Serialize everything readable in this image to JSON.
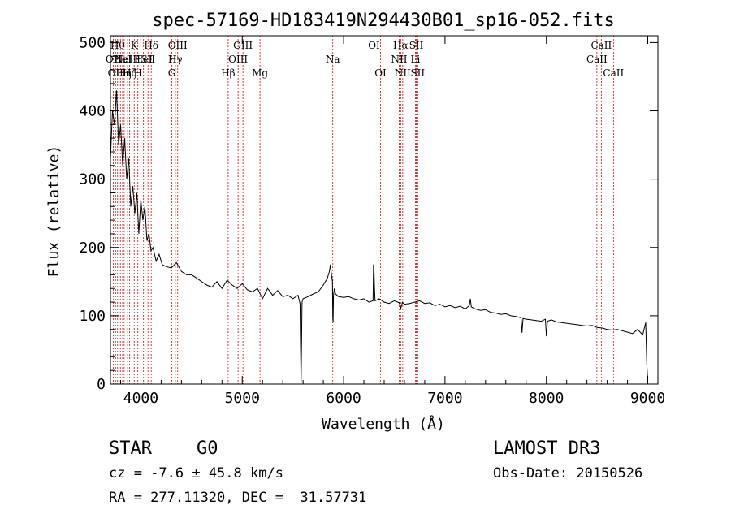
{
  "chart_data": {
    "type": "line",
    "title": "spec-57169-HD183419N294430B01_sp16-052.fits",
    "xlabel": "Wavelength (Å)",
    "ylabel": "Flux (relative)",
    "xlim": [
      3700,
      9100
    ],
    "ylim": [
      0,
      510
    ],
    "xticks": [
      4000,
      5000,
      6000,
      7000,
      8000,
      9000
    ],
    "yticks": [
      0,
      100,
      200,
      300,
      400,
      500
    ],
    "series": [
      {
        "name": "flux",
        "x": [
          3700,
          3720,
          3740,
          3760,
          3780,
          3800,
          3820,
          3840,
          3860,
          3880,
          3900,
          3920,
          3940,
          3960,
          3980,
          4000,
          4020,
          4040,
          4060,
          4080,
          4100,
          4120,
          4150,
          4180,
          4210,
          4250,
          4300,
          4350,
          4400,
          4450,
          4500,
          4550,
          4600,
          4650,
          4700,
          4750,
          4800,
          4850,
          4900,
          4950,
          5000,
          5050,
          5100,
          5150,
          5200,
          5250,
          5300,
          5350,
          5400,
          5450,
          5500,
          5550,
          5570,
          5575,
          5580,
          5590,
          5600,
          5650,
          5700,
          5750,
          5800,
          5820,
          5840,
          5860,
          5870,
          5880,
          5890,
          5893,
          5896,
          5900,
          5910,
          5920,
          5950,
          6000,
          6050,
          6100,
          6150,
          6200,
          6250,
          6290,
          6295,
          6300,
          6305,
          6310,
          6350,
          6400,
          6450,
          6500,
          6550,
          6563,
          6580,
          6600,
          6650,
          6700,
          6750,
          6800,
          6850,
          6900,
          6950,
          7000,
          7050,
          7100,
          7150,
          7200,
          7240,
          7250,
          7260,
          7300,
          7350,
          7400,
          7450,
          7500,
          7550,
          7600,
          7650,
          7700,
          7750,
          7760,
          7770,
          7800,
          7850,
          7900,
          7950,
          7990,
          8000,
          8010,
          8050,
          8100,
          8150,
          8200,
          8250,
          8300,
          8350,
          8400,
          8450,
          8500,
          8550,
          8600,
          8650,
          8700,
          8750,
          8800,
          8850,
          8900,
          8950,
          8980,
          8990,
          9000
        ],
        "values": [
          330,
          400,
          380,
          430,
          350,
          380,
          320,
          360,
          300,
          330,
          260,
          290,
          250,
          280,
          220,
          270,
          240,
          260,
          210,
          220,
          195,
          200,
          180,
          190,
          175,
          172,
          170,
          178,
          165,
          160,
          160,
          155,
          150,
          145,
          142,
          150,
          140,
          152,
          145,
          140,
          147,
          138,
          135,
          140,
          125,
          140,
          130,
          137,
          128,
          130,
          125,
          130,
          118,
          60,
          2,
          120,
          125,
          128,
          132,
          135,
          145,
          150,
          155,
          165,
          175,
          160,
          150,
          100,
          90,
          130,
          140,
          132,
          128,
          127,
          128,
          125,
          123,
          125,
          120,
          122,
          175,
          168,
          140,
          122,
          125,
          120,
          118,
          122,
          119,
          110,
          120,
          117,
          118,
          120,
          122,
          118,
          119,
          115,
          117,
          113,
          115,
          112,
          114,
          110,
          115,
          125,
          113,
          110,
          108,
          109,
          105,
          104,
          102,
          103,
          100,
          99,
          97,
          75,
          96,
          95,
          94,
          93,
          92,
          95,
          70,
          92,
          94,
          91,
          90,
          89,
          88,
          87,
          86,
          85,
          86,
          83,
          82,
          80,
          79,
          80,
          78,
          76,
          74,
          80,
          72,
          90,
          30,
          5
        ]
      }
    ],
    "lines": [
      {
        "wl": 3728,
        "label": "OII",
        "row": 2
      },
      {
        "wl": 3750,
        "label": "OII",
        "row": 3
      },
      {
        "wl": 3770,
        "label": "Hθ",
        "row": 1
      },
      {
        "wl": 3798,
        "label": "He",
        "row": 2
      },
      {
        "wl": 3820,
        "label": "HeI",
        "row": 2
      },
      {
        "wl": 3835,
        "label": "Hη",
        "row": 3
      },
      {
        "wl": 3869,
        "label": "NeIII",
        "row": 2
      },
      {
        "wl": 3889,
        "label": "Hζ",
        "row": 3
      },
      {
        "wl": 3934,
        "label": "K",
        "row": 1
      },
      {
        "wl": 3970,
        "label": "H",
        "row": 3
      },
      {
        "wl": 4026,
        "label": "HeI",
        "row": 2
      },
      {
        "wl": 4070,
        "label": "SII",
        "row": 2
      },
      {
        "wl": 4102,
        "label": "Hδ",
        "row": 1
      },
      {
        "wl": 4305,
        "label": "G",
        "row": 3
      },
      {
        "wl": 4340,
        "label": "Hγ",
        "row": 2
      },
      {
        "wl": 4363,
        "label": "OIII",
        "row": 1
      },
      {
        "wl": 4861,
        "label": "Hβ",
        "row": 3
      },
      {
        "wl": 4959,
        "label": "OIII",
        "row": 2
      },
      {
        "wl": 5007,
        "label": "OIII",
        "row": 1
      },
      {
        "wl": 5175,
        "label": "Mg",
        "row": 3
      },
      {
        "wl": 5893,
        "label": "Na",
        "row": 2
      },
      {
        "wl": 6300,
        "label": "OI",
        "row": 1
      },
      {
        "wl": 6364,
        "label": "OI",
        "row": 3
      },
      {
        "wl": 6548,
        "label": "NII",
        "row": 2
      },
      {
        "wl": 6563,
        "label": "Hα",
        "row": 1
      },
      {
        "wl": 6583,
        "label": "NII",
        "row": 3
      },
      {
        "wl": 6708,
        "label": "Li",
        "row": 2
      },
      {
        "wl": 6717,
        "label": "SII",
        "row": 1
      },
      {
        "wl": 6731,
        "label": "SII",
        "row": 3
      },
      {
        "wl": 8498,
        "label": "CaII",
        "row": 2
      },
      {
        "wl": 8542,
        "label": "CaII",
        "row": 1
      },
      {
        "wl": 8662,
        "label": "CaII",
        "row": 3
      }
    ]
  },
  "info": {
    "object_class": "STAR",
    "subclass": "G0",
    "survey": "LAMOST DR3",
    "redshift": "cz = -7.6 ± 45.8 km/s",
    "obs_date": "Obs-Date: 20150526",
    "coords": "RA = 277.11320, DEC =  31.57731"
  }
}
